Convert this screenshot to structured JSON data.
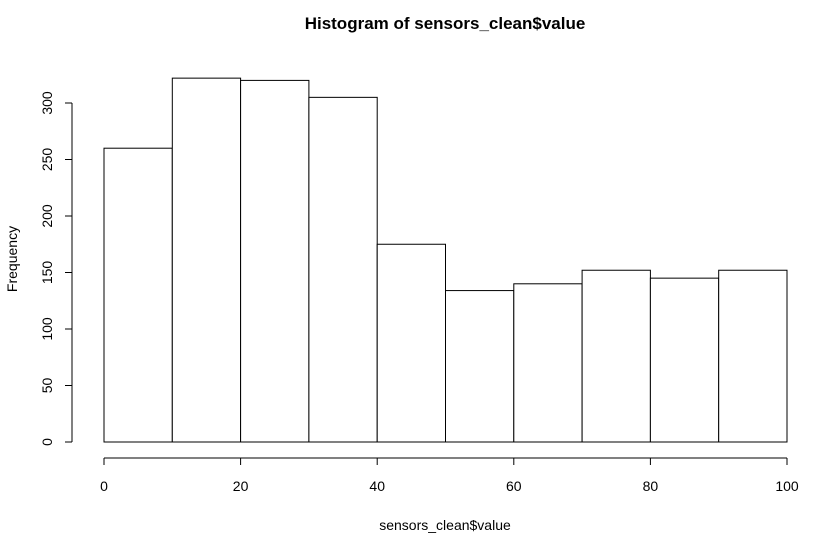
{
  "chart_data": {
    "type": "bar",
    "title": "Histogram of sensors_clean$value",
    "xlabel": "sensors_clean$value",
    "ylabel": "Frequency",
    "bins": [
      {
        "start": 0,
        "end": 10,
        "count": 260
      },
      {
        "start": 10,
        "end": 20,
        "count": 322
      },
      {
        "start": 20,
        "end": 30,
        "count": 320
      },
      {
        "start": 30,
        "end": 40,
        "count": 305
      },
      {
        "start": 40,
        "end": 50,
        "count": 175
      },
      {
        "start": 50,
        "end": 60,
        "count": 134
      },
      {
        "start": 60,
        "end": 70,
        "count": 140
      },
      {
        "start": 70,
        "end": 80,
        "count": 152
      },
      {
        "start": 80,
        "end": 90,
        "count": 145
      },
      {
        "start": 90,
        "end": 100,
        "count": 152
      }
    ],
    "xlim": [
      0,
      100
    ],
    "ylim": [
      0,
      300
    ],
    "xticks": [
      "0",
      "20",
      "40",
      "60",
      "80",
      "100"
    ],
    "yticks": [
      "0",
      "50",
      "100",
      "150",
      "200",
      "250",
      "300"
    ],
    "colors": {
      "bar_fill": "#ffffff",
      "bar_stroke": "#000000",
      "background": "#ffffff"
    },
    "grid": false,
    "legend": "none"
  }
}
